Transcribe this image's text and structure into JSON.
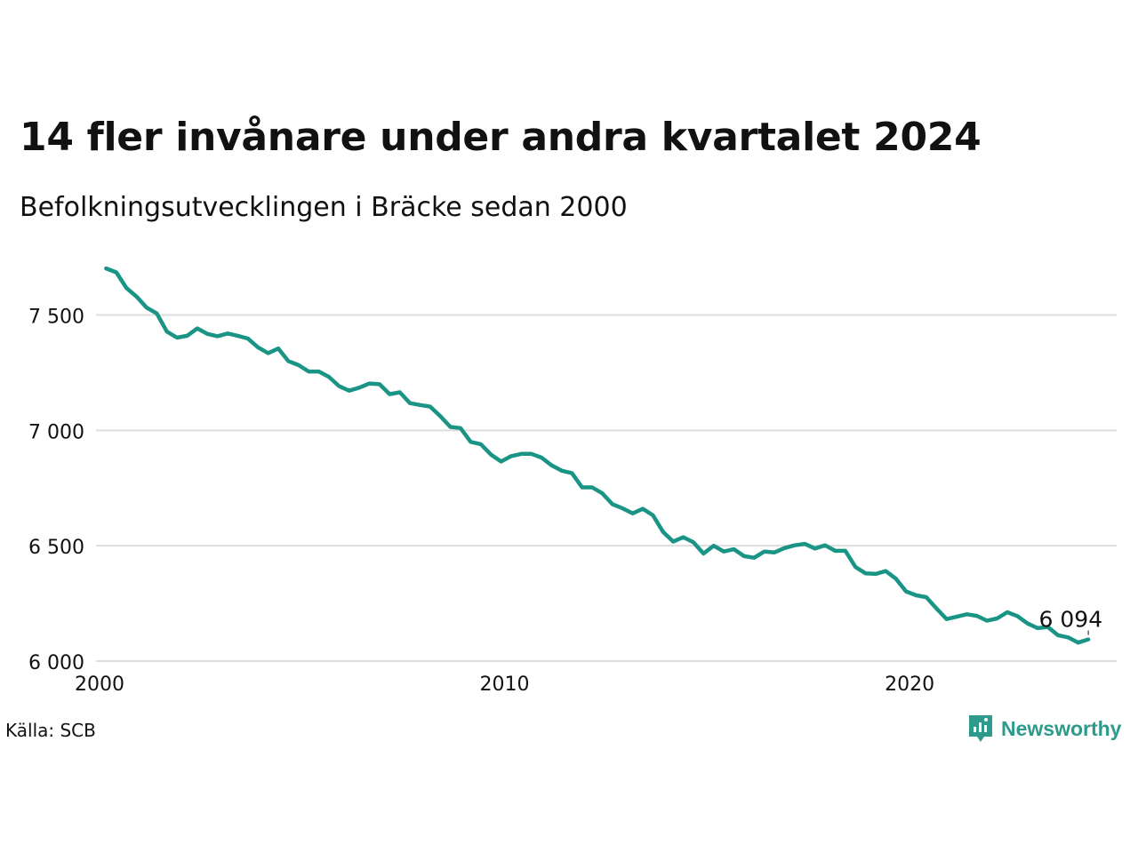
{
  "header": {
    "title": "14 fler invånare under andra kvartalet 2024",
    "subtitle": "Befolkningsutvecklingen i Bräcke sedan 2000"
  },
  "footer": {
    "source": "Källa: SCB",
    "brand": "Newsworthy",
    "brand_icon": "newsworthy-logo-icon"
  },
  "colors": {
    "line": "#1a9585",
    "grid": "#dddddd",
    "brand": "#2e9a8c",
    "text": "#111111"
  },
  "chart_data": {
    "type": "line",
    "title": "14 fler invånare under andra kvartalet 2024",
    "subtitle": "Befolkningsutvecklingen i Bräcke sedan 2000",
    "xlabel": "",
    "ylabel": "",
    "x_ticks": [
      "2000",
      "2010",
      "2020"
    ],
    "y_ticks": [
      {
        "value": 6000,
        "label": "6 000"
      },
      {
        "value": 6500,
        "label": "6 500"
      },
      {
        "value": 7000,
        "label": "7 000"
      },
      {
        "value": 7500,
        "label": "7 500"
      }
    ],
    "xlim": [
      2000,
      2025.2
    ],
    "ylim": [
      6000,
      7710
    ],
    "grid": true,
    "legend": "none",
    "end_label": "6 094",
    "series": [
      {
        "x": [
          2000.25,
          2000.5,
          2000.75,
          2001.0,
          2001.25,
          2001.5,
          2001.75,
          2002.0,
          2002.25,
          2002.5,
          2002.75,
          2003.0,
          2003.25,
          2003.5,
          2003.75,
          2004.0,
          2004.25,
          2004.5,
          2004.75,
          2005.0,
          2005.25,
          2005.5,
          2005.75,
          2006.0,
          2006.25,
          2006.5,
          2006.75,
          2007.0,
          2007.25,
          2007.5,
          2007.75,
          2008.0,
          2008.25,
          2008.5,
          2008.75,
          2009.0,
          2009.25,
          2009.5,
          2009.75,
          2010.0,
          2010.25,
          2010.5,
          2010.75,
          2011.0,
          2011.25,
          2011.5,
          2011.75,
          2012.0,
          2012.25,
          2012.5,
          2012.75,
          2013.0,
          2013.25,
          2013.5,
          2013.75,
          2014.0,
          2014.25,
          2014.5,
          2014.75,
          2015.0,
          2015.25,
          2015.5,
          2015.75,
          2016.0,
          2016.25,
          2016.5,
          2016.75,
          2017.0,
          2017.25,
          2017.5,
          2017.75,
          2018.0,
          2018.25,
          2018.5,
          2018.75,
          2019.0,
          2019.25,
          2019.5,
          2019.75,
          2020.0,
          2020.25,
          2020.5,
          2020.75,
          2021.0,
          2021.25,
          2021.5,
          2021.75,
          2022.0,
          2022.25,
          2022.5,
          2022.75,
          2023.0,
          2023.25,
          2023.5,
          2023.75,
          2024.0,
          2024.25,
          2024.5
        ],
        "y": [
          7702,
          7685,
          7617,
          7580,
          7532,
          7507,
          7428,
          7402,
          7410,
          7442,
          7418,
          7408,
          7420,
          7410,
          7398,
          7360,
          7335,
          7355,
          7300,
          7283,
          7255,
          7255,
          7232,
          7192,
          7172,
          7185,
          7203,
          7200,
          7157,
          7165,
          7118,
          7110,
          7103,
          7062,
          7015,
          7010,
          6950,
          6940,
          6895,
          6865,
          6888,
          6898,
          6898,
          6882,
          6848,
          6825,
          6815,
          6753,
          6753,
          6727,
          6680,
          6662,
          6640,
          6660,
          6632,
          6560,
          6518,
          6537,
          6515,
          6466,
          6500,
          6475,
          6485,
          6455,
          6448,
          6475,
          6471,
          6490,
          6502,
          6508,
          6488,
          6502,
          6478,
          6478,
          6408,
          6380,
          6378,
          6390,
          6357,
          6302,
          6285,
          6277,
          6228,
          6182,
          6192,
          6203,
          6196,
          6175,
          6185,
          6212,
          6195,
          6163,
          6143,
          6148,
          6112,
          6103,
          6080,
          6094
        ]
      }
    ]
  }
}
